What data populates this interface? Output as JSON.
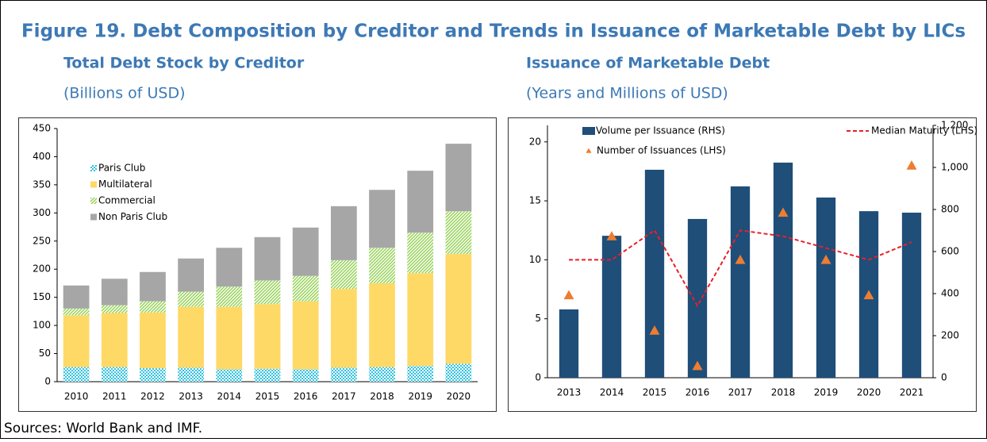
{
  "figure_title": "Figure 19. Debt Composition by Creditor and Trends in Issuance of Marketable Debt by LICs",
  "source": "Sources: World Bank and IMF.",
  "chart_data": [
    {
      "type": "stacked_bar",
      "title": "Total Debt Stock by Creditor",
      "subtitle": "(Billions of USD)",
      "categories": [
        "2010",
        "2011",
        "2012",
        "2013",
        "2014",
        "2015",
        "2016",
        "2017",
        "2018",
        "2019",
        "2020"
      ],
      "series": [
        {
          "name": "Paris Club",
          "color": "#33c3e0",
          "pattern": "checker",
          "values": [
            26,
            26,
            24,
            25,
            22,
            23,
            22,
            25,
            26,
            28,
            32
          ]
        },
        {
          "name": "Multilateral",
          "color": "#ffd966",
          "values": [
            92,
            96,
            99,
            108,
            111,
            115,
            121,
            140,
            149,
            165,
            195
          ]
        },
        {
          "name": "Commercial",
          "color": "#92d050",
          "pattern": "hatch",
          "values": [
            12,
            14,
            20,
            27,
            36,
            42,
            45,
            51,
            63,
            72,
            76
          ]
        },
        {
          "name": "Non Paris Club",
          "color": "#a6a6a6",
          "values": [
            41,
            47,
            52,
            59,
            69,
            77,
            86,
            96,
            103,
            110,
            120
          ]
        }
      ],
      "ylim": [
        0,
        450
      ],
      "yticks": [
        0,
        50,
        100,
        150,
        200,
        250,
        300,
        350,
        400,
        450
      ],
      "legend": "upper left"
    },
    {
      "type": "combo",
      "title": "Issuance of Marketable Debt",
      "subtitle": "(Years and Millions of USD)",
      "categories": [
        "2013",
        "2014",
        "2015",
        "2016",
        "2017",
        "2018",
        "2019",
        "2020",
        "2021"
      ],
      "series": [
        {
          "name": "Volume per Issuance (RHS)",
          "mark": "bar",
          "axis": "y2",
          "color": "#1f4e79",
          "values": [
            325,
            675,
            989,
            755,
            910,
            1023,
            857,
            792,
            785
          ]
        },
        {
          "name": "Median Maturity (LHS)",
          "mark": "dashed_line",
          "color": "#e8202a",
          "values": [
            10,
            10,
            12.5,
            6.1,
            12.5,
            12,
            11,
            10,
            11.5
          ]
        },
        {
          "name": "Number of Issuances (LHS)",
          "mark": "triangle",
          "color": "#ed7d31",
          "values": [
            7,
            12,
            4,
            1,
            10,
            14,
            10,
            7,
            18
          ]
        }
      ],
      "ylim": [
        0,
        21.4
      ],
      "yticks": [
        0,
        5,
        10,
        15,
        20
      ],
      "y2lim": [
        0,
        1200
      ],
      "y2ticks": [
        0,
        200,
        400,
        600,
        800,
        {
          "value": 1000,
          "label": "1,000"
        },
        {
          "value": 1200,
          "label": "1,200"
        }
      ],
      "legend": "top"
    }
  ]
}
